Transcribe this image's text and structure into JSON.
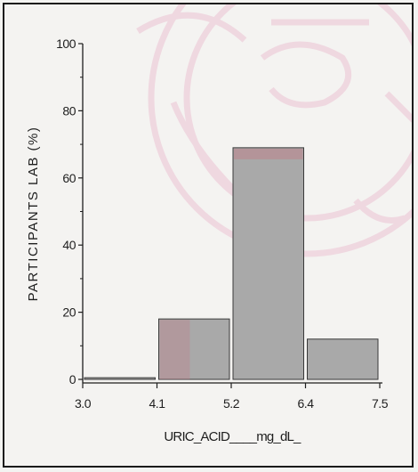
{
  "chart_data": {
    "type": "bar",
    "title": "",
    "xlabel": "URIC_ACID____mg_dL_",
    "ylabel": "PARTICIPANTS LAB  (%)",
    "bins": [
      {
        "from": 3.0,
        "to": 4.1,
        "value": 0.5
      },
      {
        "from": 4.1,
        "to": 5.2,
        "value": 18
      },
      {
        "from": 5.2,
        "to": 6.4,
        "value": 69
      },
      {
        "from": 6.4,
        "to": 7.5,
        "value": 12
      }
    ],
    "x_ticks": [
      "3.0",
      "4.1",
      "5.2",
      "6.4",
      "7.5"
    ],
    "y_ticks": [
      "0",
      "20",
      "40",
      "60",
      "80",
      "100"
    ],
    "ylim": [
      0,
      100
    ],
    "grid": false,
    "bar_color": "#a9a9a9",
    "highlight_color": "#c07a86",
    "watermark_color": "#ecc2d3"
  }
}
